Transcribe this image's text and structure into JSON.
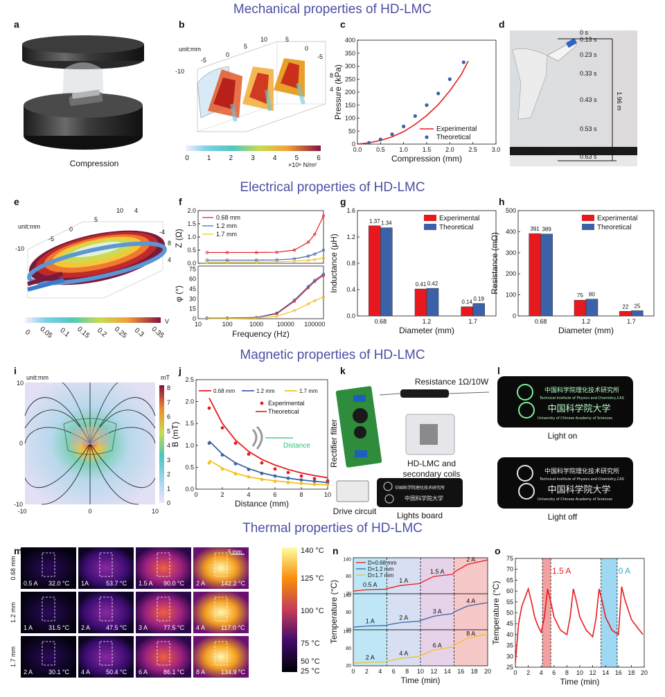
{
  "sections": {
    "mechanical": "Mechanical properties of HD-LMC",
    "electrical": "Electrical properties of HD-LMC",
    "magnetic": "Magnetic properties of HD-LMC",
    "thermal": "Thermal properties of HD-LMC"
  },
  "panel_letters": [
    "a",
    "b",
    "c",
    "d",
    "e",
    "f",
    "g",
    "h",
    "i",
    "j",
    "k",
    "l",
    "m",
    "n",
    "o"
  ],
  "panel_a": {
    "caption": "Compression"
  },
  "panel_b": {
    "unit": "unit:mm",
    "colorbar_ticks": [
      "0",
      "1",
      "2",
      "3",
      "4",
      "5",
      "6"
    ],
    "colorbar_unit": "×10⁸ N/m²",
    "axis_ticks": [
      "-10",
      "-5",
      "0",
      "5",
      "10",
      "5",
      "0",
      "-5",
      "8",
      "4"
    ]
  },
  "panel_d": {
    "times": [
      "0 s",
      "0.13 s",
      "0.23 s",
      "0.33 s",
      "0.43 s",
      "0.53 s",
      "0.63 s"
    ],
    "height": "1.96 m"
  },
  "panel_e": {
    "unit": "unit:mm",
    "colorbar_ticks": [
      "0",
      "0.05",
      "0.1",
      "0.15",
      "0.2",
      "0.25",
      "0.3",
      "0.35"
    ],
    "colorbar_unit": "V",
    "axis_ticks": [
      "-10",
      "-5",
      "0",
      "5",
      "10",
      "4",
      "-4",
      "8",
      "4"
    ]
  },
  "panel_i": {
    "unit": "unit:mm",
    "colorbar_unit": "mT",
    "colorbar_ticks": [
      "8",
      "7",
      "6",
      "5",
      "4",
      "3",
      "2",
      "1",
      "0"
    ],
    "x_ticks": [
      "-10",
      "0",
      "10"
    ],
    "y_ticks": [
      "10",
      "0",
      "-10"
    ]
  },
  "panel_k": {
    "labels": [
      "Resistance 1Ω/10W",
      "Rectifier filter",
      "HD-LMC and",
      "secondary coils",
      "Drive circuit",
      "Lights board"
    ]
  },
  "panel_l": {
    "labels": [
      "Light on",
      "Light off"
    ],
    "logo_text": [
      "中国科学院理化技术研究所",
      "Technical Institute of Physics and Chemistry,CAS",
      "中国科学院大学",
      "University of Chinese Academy of Sciences"
    ]
  },
  "panel_m": {
    "row_labels": [
      "0.68 mm",
      "1.2 mm",
      "1.7 mm"
    ],
    "scale": "5 mm",
    "cells": [
      [
        {
          "i": "0.5 A",
          "t": "32.0"
        },
        {
          "i": "1A",
          "t": "53.7"
        },
        {
          "i": "1.5 A",
          "t": "90.0"
        },
        {
          "i": "2 A",
          "t": "142.2"
        }
      ],
      [
        {
          "i": "1 A",
          "t": "31.5"
        },
        {
          "i": "2 A",
          "t": "47.5"
        },
        {
          "i": "3 A",
          "t": "77.5"
        },
        {
          "i": "4 A",
          "t": "117.0"
        }
      ],
      [
        {
          "i": "2 A",
          "t": "30.1"
        },
        {
          "i": "4 A",
          "t": "50.4"
        },
        {
          "i": "6 A",
          "t": "86.1"
        },
        {
          "i": "8 A",
          "t": "134.9"
        }
      ]
    ],
    "temp_unit": "°C",
    "colorbar_ticks": [
      "140 °C",
      "125 °C",
      "100 °C",
      "75 °C",
      "50 °C",
      "25 °C"
    ]
  },
  "colors": {
    "title": "#4b4fa3",
    "red": "#e8191e",
    "blue": "#3b62a8",
    "yellow": "#f3c11b",
    "grey": "#808080"
  },
  "chart_data": [
    {
      "id": "c",
      "type": "line",
      "xlabel": "Compression (mm)",
      "ylabel": "Pressure (kPa)",
      "xlim": [
        0,
        3
      ],
      "ylim": [
        0,
        400
      ],
      "x_ticks": [
        "0.0",
        "0.5",
        "1.0",
        "1.5",
        "2.0",
        "2.5",
        "3.0"
      ],
      "y_ticks": [
        "0",
        "50",
        "100",
        "150",
        "200",
        "250",
        "300",
        "350",
        "400"
      ],
      "legend": [
        "Experimental",
        "Theoretical"
      ],
      "series": [
        {
          "name": "Experimental",
          "x": [
            0,
            0.25,
            0.5,
            0.75,
            1.0,
            1.25,
            1.5,
            1.75,
            2.0,
            2.25,
            2.4
          ],
          "y": [
            0,
            5,
            14,
            28,
            48,
            76,
            110,
            152,
            205,
            268,
            320
          ]
        },
        {
          "name": "Theoretical",
          "x": [
            0.25,
            0.5,
            0.75,
            1.0,
            1.25,
            1.5,
            1.75,
            2.0,
            2.3
          ],
          "y": [
            5,
            18,
            38,
            68,
            108,
            150,
            195,
            250,
            315
          ]
        }
      ]
    },
    {
      "id": "f",
      "type": "line",
      "xlabel": "Frequency (Hz)",
      "ylabel_top": "Z (Ω)",
      "ylabel_bottom": "φ (°)",
      "x_ticks": [
        "10",
        "100",
        "1000",
        "10000",
        "100000"
      ],
      "y_ticks_top": [
        "0.0",
        "0.5",
        "1.0",
        "1.5",
        "2.0"
      ],
      "y_ticks_bottom": [
        "0",
        "15",
        "30",
        "45",
        "60",
        "75"
      ],
      "legend": [
        "0.68 mm",
        "1.2 mm",
        "1.7 mm"
      ],
      "series": [
        {
          "name": "0.68 mm",
          "x": [
            20,
            100,
            1000,
            5000,
            20000,
            60000,
            100000,
            200000
          ],
          "z": [
            0.41,
            0.41,
            0.41,
            0.42,
            0.5,
            0.8,
            1.1,
            1.8
          ],
          "phi": [
            1,
            1,
            2,
            8,
            28,
            50,
            60,
            70
          ]
        },
        {
          "name": "1.2 mm",
          "x": [
            20,
            100,
            1000,
            5000,
            20000,
            60000,
            100000,
            200000
          ],
          "z": [
            0.12,
            0.12,
            0.12,
            0.13,
            0.17,
            0.27,
            0.35,
            0.5
          ],
          "phi": [
            1,
            1,
            2,
            9,
            30,
            52,
            62,
            72
          ]
        },
        {
          "name": "1.7 mm",
          "x": [
            20,
            100,
            1000,
            5000,
            20000,
            60000,
            100000,
            200000
          ],
          "z": [
            0.05,
            0.05,
            0.05,
            0.06,
            0.08,
            0.11,
            0.14,
            0.2
          ],
          "phi": [
            0,
            0,
            1,
            4,
            13,
            24,
            29,
            35
          ]
        }
      ]
    },
    {
      "id": "g",
      "type": "bar",
      "xlabel": "Diameter (mm)",
      "ylabel": "Inductance (μH)",
      "categories": [
        "0.68",
        "1.2",
        "1.7"
      ],
      "ylim": [
        0,
        1.6
      ],
      "y_ticks": [
        "0.0",
        "0.4",
        "0.8",
        "1.2",
        "1.6"
      ],
      "legend": [
        "Experimental",
        "Theoretical"
      ],
      "series": [
        {
          "name": "Experimental",
          "values": [
            1.37,
            0.41,
            0.14
          ]
        },
        {
          "name": "Theoretical",
          "values": [
            1.34,
            0.42,
            0.19
          ]
        }
      ]
    },
    {
      "id": "h",
      "type": "bar",
      "xlabel": "Diameter (mm)",
      "ylabel": "Resistance (mΩ)",
      "categories": [
        "0.68",
        "1.2",
        "1.7"
      ],
      "ylim": [
        0,
        500
      ],
      "y_ticks": [
        "0",
        "100",
        "200",
        "300",
        "400",
        "500"
      ],
      "legend": [
        "Experimental",
        "Theoretical"
      ],
      "series": [
        {
          "name": "Experimental",
          "values": [
            391,
            75,
            22
          ]
        },
        {
          "name": "Theoretical",
          "values": [
            389,
            80,
            25
          ]
        }
      ]
    },
    {
      "id": "j",
      "type": "line",
      "xlabel": "Distance (mm)",
      "ylabel": "B (mT)",
      "xlim": [
        0,
        10
      ],
      "ylim": [
        0,
        2.5
      ],
      "x_ticks": [
        "0",
        "2",
        "4",
        "6",
        "8",
        "10"
      ],
      "y_ticks": [
        "0.0",
        "0.5",
        "1.0",
        "1.5",
        "2.0",
        "2.5"
      ],
      "legend": [
        "0.68 mm",
        "1.2 mm",
        "1.7 mm",
        "Experimental",
        "Theoretical"
      ],
      "inset_label": "Distance",
      "series": [
        {
          "name": "0.68 mm",
          "x": [
            1,
            2,
            3,
            4,
            5,
            6,
            7,
            8,
            9,
            10
          ],
          "theory": [
            2.08,
            1.5,
            1.12,
            0.86,
            0.68,
            0.55,
            0.45,
            0.37,
            0.31,
            0.26
          ],
          "exp": [
            1.85,
            1.4,
            1.05,
            0.8,
            0.6,
            0.46,
            0.38,
            0.3,
            0.24,
            0.19
          ]
        },
        {
          "name": "1.2 mm",
          "x": [
            1,
            2,
            3,
            4,
            5,
            6,
            7,
            8,
            9,
            10
          ],
          "theory": [
            1.1,
            0.8,
            0.6,
            0.47,
            0.37,
            0.3,
            0.25,
            0.21,
            0.18,
            0.15
          ],
          "exp": [
            1.05,
            0.78,
            0.58,
            0.45,
            0.36,
            0.3,
            0.25,
            0.21,
            0.18,
            0.15
          ]
        },
        {
          "name": "1.7 mm",
          "x": [
            1,
            2,
            3,
            4,
            5,
            6,
            7,
            8,
            9,
            10
          ],
          "theory": [
            0.66,
            0.48,
            0.36,
            0.28,
            0.23,
            0.19,
            0.16,
            0.13,
            0.11,
            0.1
          ],
          "exp": [
            0.6,
            0.46,
            0.35,
            0.28,
            0.22,
            0.18,
            0.15,
            0.13,
            0.11,
            0.1
          ]
        }
      ]
    },
    {
      "id": "n",
      "type": "line",
      "xlabel": "Time (min)",
      "ylabel": "Temperature (°C)",
      "xlim": [
        0,
        20
      ],
      "x_ticks": [
        "0",
        "2",
        "4",
        "6",
        "8",
        "10",
        "12",
        "14",
        "16",
        "18",
        "20"
      ],
      "y_ticks": [
        "20",
        "40",
        "60",
        "80",
        "100",
        "120",
        "140"
      ],
      "legend": [
        "D=0.68 mm",
        "D=1.2 mm",
        "D=1.7 mm"
      ],
      "series": [
        {
          "name": "D=0.68 mm",
          "currents": [
            "0.5 A",
            "1 A",
            "1.5 A",
            "2 A"
          ],
          "x": [
            0,
            2,
            4.8,
            5,
            7,
            9.8,
            10,
            12,
            14.8,
            15,
            17,
            20
          ],
          "y": [
            25,
            30,
            32,
            34,
            46,
            53,
            56,
            80,
            88,
            96,
            125,
            142
          ]
        },
        {
          "name": "D=1.2 mm",
          "currents": [
            "1 A",
            "2 A",
            "3 A",
            "4 A"
          ],
          "x": [
            0,
            2,
            4.8,
            5,
            7,
            9.8,
            10,
            12,
            14.8,
            15,
            17,
            20
          ],
          "y": [
            25,
            29,
            31,
            33,
            42,
            47,
            50,
            66,
            76,
            82,
            104,
            117
          ]
        },
        {
          "name": "D=1.7 mm",
          "currents": [
            "2 A",
            "4 A",
            "6 A",
            "8 A"
          ],
          "x": [
            0,
            2,
            4.8,
            5,
            7,
            9.8,
            10,
            12,
            14.8,
            15,
            17,
            20
          ],
          "y": [
            25,
            28,
            30,
            32,
            43,
            50,
            54,
            74,
            86,
            92,
            118,
            135
          ]
        }
      ]
    },
    {
      "id": "o",
      "type": "line",
      "xlabel": "Time (min)",
      "ylabel": "Temperature (°C)",
      "xlim": [
        0,
        20
      ],
      "ylim": [
        25,
        75
      ],
      "x_ticks": [
        "0",
        "2",
        "4",
        "6",
        "8",
        "10",
        "12",
        "14",
        "16",
        "18",
        "20"
      ],
      "y_ticks": [
        "25",
        "30",
        "35",
        "40",
        "45",
        "50",
        "55",
        "60",
        "65",
        "70",
        "75"
      ],
      "annotations": [
        "1.5 A",
        "0 A"
      ],
      "series": [
        {
          "name": "Temperature",
          "x": [
            0,
            0.5,
            1,
            2,
            2.5,
            3,
            3.5,
            4,
            4.5,
            5,
            5.5,
            6,
            7,
            8,
            8.5,
            9,
            9.5,
            10,
            11,
            12,
            12.5,
            13,
            13.5,
            14,
            15,
            16,
            16.5,
            17,
            18,
            19,
            19.8
          ],
          "y": [
            27,
            45,
            53,
            61,
            55,
            48,
            44,
            41,
            48,
            61,
            55,
            48,
            42,
            40,
            48,
            61,
            55,
            48,
            42,
            39,
            47,
            61,
            55,
            48,
            42,
            40,
            62,
            56,
            47,
            43,
            40
          ]
        }
      ]
    }
  ]
}
